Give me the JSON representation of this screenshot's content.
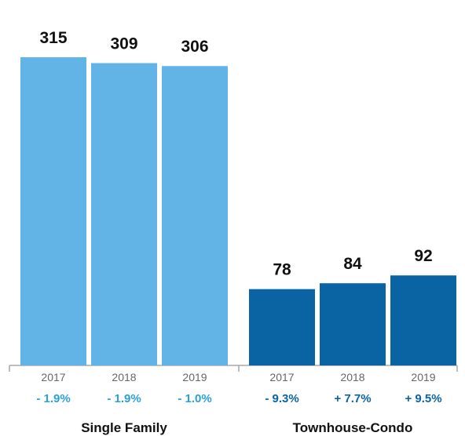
{
  "colors": {
    "single_family": "#62b4e6",
    "townhouse_condo": "#0a64a4",
    "single_family_change": "#2aa0d8",
    "townhouse_condo_change": "#0a64a4",
    "axis": "#a8a8a8"
  },
  "chart_data": {
    "type": "bar",
    "ylim": [
      0,
      330
    ],
    "grid": false,
    "groups": [
      {
        "name": "Single Family",
        "bars": [
          {
            "year": "2017",
            "value": 315,
            "value_label": "315",
            "change": "- 1.9%"
          },
          {
            "year": "2018",
            "value": 309,
            "value_label": "309",
            "change": "- 1.9%"
          },
          {
            "year": "2019",
            "value": 306,
            "value_label": "306",
            "change": "- 1.0%"
          }
        ]
      },
      {
        "name": "Townhouse-Condo",
        "bars": [
          {
            "year": "2017",
            "value": 78,
            "value_label": "78",
            "change": "- 9.3%"
          },
          {
            "year": "2018",
            "value": 84,
            "value_label": "84",
            "change": "+ 7.7%"
          },
          {
            "year": "2019",
            "value": 92,
            "value_label": "92",
            "change": "+ 9.5%"
          }
        ]
      }
    ]
  }
}
